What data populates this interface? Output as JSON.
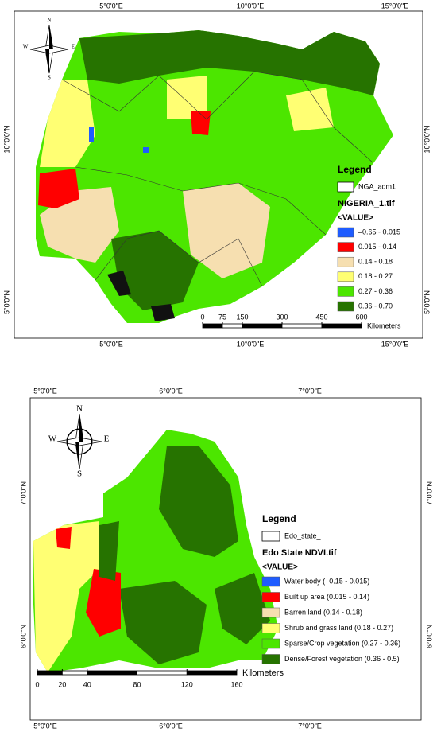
{
  "maps": [
    {
      "top_labels": [
        "5°0'0\"E",
        "10°0'0\"E",
        "15°0'0\"E"
      ],
      "bottom_labels": [
        "5°0'0\"E",
        "10°0'0\"E",
        "15°0'0\"E"
      ],
      "left_labels": [
        "10°0'0\"N",
        "5°0'0\"N"
      ],
      "right_labels": [
        "10°0'0\"N",
        "5°0'0\"N"
      ],
      "north": {
        "n": "N",
        "s": "S",
        "w": "W",
        "e": "E"
      },
      "legend": {
        "title": "Legend",
        "boundary": "NGA_adm1",
        "raster": "NIGERIA_1.tif",
        "value": "<VALUE>",
        "classes": [
          {
            "label": "–0.65 - 0.015",
            "color": "#1f5cff"
          },
          {
            "label": "0.015 - 0.14",
            "color": "#ff0000"
          },
          {
            "label": "0.14 - 0.18",
            "color": "#f6dfb0"
          },
          {
            "label": "0.18 - 0.27",
            "color": "#ffff73"
          },
          {
            "label": "0.27 - 0.36",
            "color": "#4ce600"
          },
          {
            "label": "0.36 - 0.70",
            "color": "#267300"
          }
        ]
      },
      "scale": {
        "ticks": [
          0,
          75,
          150,
          300,
          450,
          600
        ],
        "unit": "Kilometers"
      }
    },
    {
      "top_labels": [
        "5°0'0\"E",
        "6°0'0\"E",
        "7°0'0\"E"
      ],
      "bottom_labels": [
        "5°0'0\"E",
        "6°0'0\"E",
        "7°0'0\"E"
      ],
      "left_labels": [
        "7°0'0\"N",
        "6°0'0\"N"
      ],
      "right_labels": [
        "7°0'0\"N",
        "6°0'0\"N"
      ],
      "north": {
        "n": "N",
        "s": "S",
        "w": "W",
        "e": "E"
      },
      "legend": {
        "title": "Legend",
        "boundary": "Edo_state_",
        "raster": "Edo State NDVI.tif",
        "value": "<VALUE>",
        "classes": [
          {
            "label": "Water body (–0.15 - 0.015)",
            "color": "#1f5cff"
          },
          {
            "label": "Built up area (0.015 - 0.14)",
            "color": "#ff0000"
          },
          {
            "label": "Barren land (0.14 - 0.18)",
            "color": "#f6dfb0"
          },
          {
            "label": "Shrub and grass land (0.18 - 0.27)",
            "color": "#ffff73"
          },
          {
            "label": "Sparse/Crop vegetation (0.27 - 0.36)",
            "color": "#4ce600"
          },
          {
            "label": "Dense/Forest vegetation (0.36 - 0.5)",
            "color": "#267300"
          }
        ]
      },
      "scale": {
        "ticks": [
          0,
          20,
          40,
          80,
          120,
          160
        ],
        "unit": "Kilometers"
      }
    }
  ]
}
